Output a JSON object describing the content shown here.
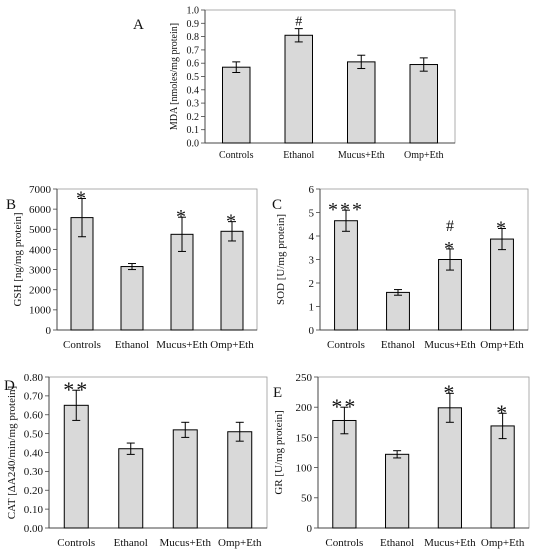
{
  "chart_data": [
    {
      "panel_letter": "A",
      "type": "bar",
      "categories": [
        "Controls",
        "Ethanol",
        "Mucus+Eth",
        "Omp+Eth"
      ],
      "values": [
        0.57,
        0.81,
        0.61,
        0.59
      ],
      "errors": [
        0.04,
        0.05,
        0.05,
        0.05
      ],
      "annotations": [
        "",
        "#",
        "",
        ""
      ],
      "ylabel": "MDA [nmoles/mg protein]",
      "ylim": [
        0,
        1.0
      ],
      "yticks": [
        "0.0",
        "0.1",
        "0.2",
        "0.3",
        "0.4",
        "0.5",
        "0.6",
        "0.7",
        "0.8",
        "0.9",
        "1.0"
      ],
      "grid": false,
      "bar_color": "#d9d9d9"
    },
    {
      "panel_letter": "B",
      "type": "bar",
      "categories": [
        "Controls",
        "Ethanol",
        "Mucus+Eth",
        "Omp+Eth"
      ],
      "values": [
        5580,
        3150,
        4750,
        4900
      ],
      "errors": [
        950,
        150,
        850,
        480
      ],
      "annotations": [
        "*",
        "",
        "*",
        "*"
      ],
      "ylabel": "GSH [ng/mg protein]",
      "ylim": [
        0,
        7000
      ],
      "yticks": [
        "0",
        "1000",
        "2000",
        "3000",
        "4000",
        "5000",
        "6000",
        "7000"
      ],
      "grid": false,
      "bar_color": "#d9d9d9"
    },
    {
      "panel_letter": "C",
      "type": "bar",
      "categories": [
        "Controls",
        "Ethanol",
        "Mucus+Eth",
        "Omp+Eth"
      ],
      "values": [
        4.65,
        1.6,
        3.0,
        3.87
      ],
      "errors": [
        0.45,
        0.12,
        0.45,
        0.45
      ],
      "annotations": [
        "***",
        "",
        "#\n*",
        "*"
      ],
      "ylabel": "SOD [U/mg protein]",
      "ylim": [
        0,
        6
      ],
      "yticks": [
        "0",
        "1",
        "2",
        "3",
        "4",
        "5",
        "6"
      ],
      "grid": false,
      "bar_color": "#d9d9d9"
    },
    {
      "panel_letter": "D",
      "type": "bar",
      "categories": [
        "Controls",
        "Ethanol",
        "Mucus+Eth",
        "Omp+Eth"
      ],
      "values": [
        0.65,
        0.42,
        0.52,
        0.51
      ],
      "errors": [
        0.08,
        0.03,
        0.04,
        0.05
      ],
      "annotations": [
        "**",
        "",
        "",
        ""
      ],
      "ylabel": "CAT [ΔA240/min/mg protein]",
      "ylim": [
        0,
        0.8
      ],
      "yticks": [
        "0.00",
        "0.10",
        "0.20",
        "0.30",
        "0.40",
        "0.50",
        "0.60",
        "0.70",
        "0.80"
      ],
      "grid": false,
      "bar_color": "#d9d9d9"
    },
    {
      "panel_letter": "E",
      "type": "bar",
      "categories": [
        "Controls",
        "Ethanol",
        "Mucus+Eth",
        "Omp+Eth"
      ],
      "values": [
        178,
        122,
        199,
        169
      ],
      "errors": [
        22,
        6,
        24,
        21
      ],
      "annotations": [
        "**",
        "",
        "*",
        "*"
      ],
      "ylabel": "GR [U/mg protein]",
      "ylim": [
        0,
        250
      ],
      "yticks": [
        "0",
        "50",
        "100",
        "150",
        "200",
        "250"
      ],
      "grid": false,
      "bar_color": "#d9d9d9"
    }
  ]
}
